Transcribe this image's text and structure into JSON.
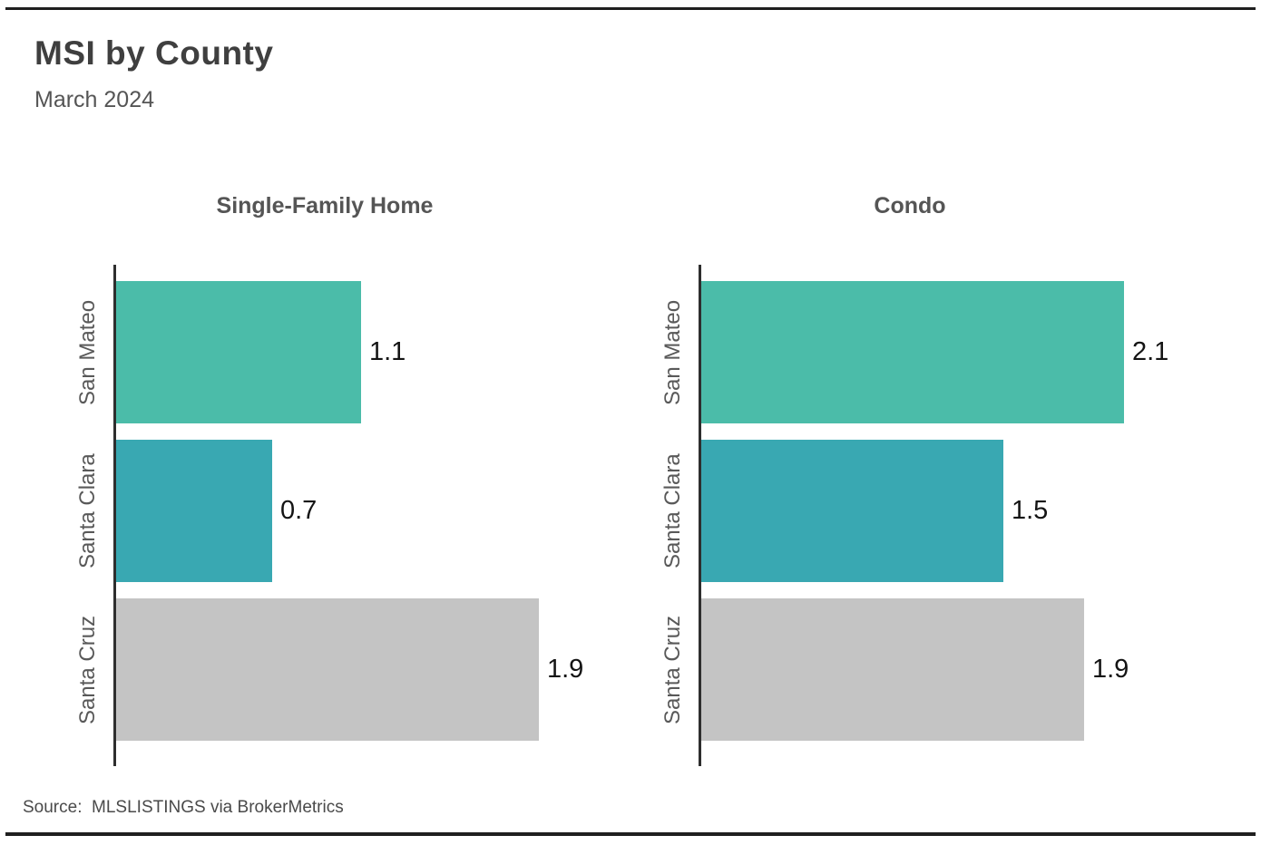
{
  "page": {
    "title": "MSI by County",
    "subtitle": "March 2024",
    "source": "Source:  MLSLISTINGS via BrokerMetrics"
  },
  "colors": {
    "rule": "#1F1F1F",
    "axis": "#2E2E2E",
    "san_mateo_bar": "#4BBCA9",
    "santa_clara_bar": "#39A8B2",
    "santa_cruz_bar": "#C4C4C4"
  },
  "chart_data": [
    {
      "type": "bar",
      "orientation": "horizontal",
      "title": "Single-Family Home",
      "categories": [
        "San Mateo",
        "Santa Clara",
        "Santa Cruz"
      ],
      "values": [
        1.1,
        0.7,
        1.9
      ],
      "value_labels": [
        "1.1",
        "0.7",
        "1.9"
      ],
      "bar_colors": [
        "#4BBCA9",
        "#39A8B2",
        "#C4C4C4"
      ],
      "xlim": [
        0,
        1.9
      ],
      "grid": false,
      "legend": false,
      "value_label_position": "right-of-bar"
    },
    {
      "type": "bar",
      "orientation": "horizontal",
      "title": "Condo",
      "categories": [
        "San Mateo",
        "Santa Clara",
        "Santa Cruz"
      ],
      "values": [
        2.1,
        1.5,
        1.9
      ],
      "value_labels": [
        "2.1",
        "1.5",
        "1.9"
      ],
      "bar_colors": [
        "#4BBCA9",
        "#39A8B2",
        "#C4C4C4"
      ],
      "xlim": [
        0,
        2.1
      ],
      "grid": false,
      "legend": false,
      "value_label_position": "right-of-bar"
    }
  ]
}
